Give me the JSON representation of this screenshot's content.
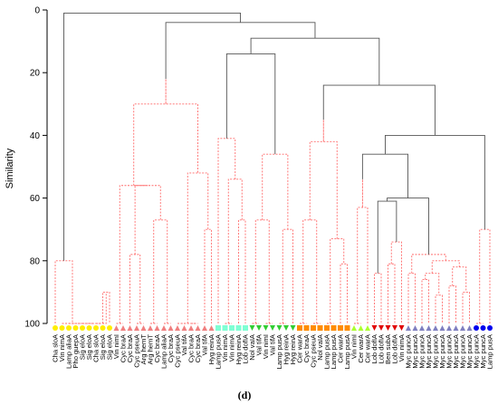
{
  "chart_data": {
    "type": "dendrogram",
    "ylabel": "Similarity",
    "ylim": [
      0,
      100
    ],
    "y_reversed": true,
    "yticks": [
      0,
      20,
      40,
      60,
      80,
      100
    ],
    "panel_label": "(d)",
    "colors": {
      "significant": "#555555",
      "nonsignificant": "#ff6b6b"
    },
    "leaves": [
      {
        "label": "Cha sloA",
        "marker": "circle",
        "color": "#ffee00"
      },
      {
        "label": "Vin nimA",
        "marker": "circle",
        "color": "#ffee00"
      },
      {
        "label": "Lamp aliaA",
        "marker": "circle",
        "color": "#ffee00"
      },
      {
        "label": "Pho guepA",
        "marker": "circle",
        "color": "#ffee00"
      },
      {
        "label": "Sig eloA",
        "marker": "circle",
        "color": "#ffee00"
      },
      {
        "label": "Sig eloA",
        "marker": "circle",
        "color": "#ffee00"
      },
      {
        "label": "Cha sloA",
        "marker": "circle",
        "color": "#ffee00"
      },
      {
        "label": "Sig eloA",
        "marker": "circle",
        "color": "#ffee00"
      },
      {
        "label": "Sig eloA",
        "marker": "circle",
        "color": "#ffee00"
      },
      {
        "label": "Vin nimI",
        "marker": "triangle-up",
        "color": "#f08080"
      },
      {
        "label": "Cyc braA",
        "marker": "triangle-up",
        "color": "#f08080"
      },
      {
        "label": "Cyc braA",
        "marker": "triangle-up",
        "color": "#f08080"
      },
      {
        "label": "Cyc pseuA",
        "marker": "triangle-up",
        "color": "#f08080"
      },
      {
        "label": "Arg hemT",
        "marker": "triangle-up",
        "color": "#f08080"
      },
      {
        "label": "Arg hemT",
        "marker": "triangle-up",
        "color": "#f08080"
      },
      {
        "label": "Cyc braA",
        "marker": "triangle-up",
        "color": "#f08080"
      },
      {
        "label": "Lamp aliaA",
        "marker": "triangle-up",
        "color": "#f08080"
      },
      {
        "label": "Cyc braA",
        "marker": "triangle-up",
        "color": "#f08080"
      },
      {
        "label": "Cyc pseuA",
        "marker": "triangle-up",
        "color": "#f08080"
      },
      {
        "label": "Val tifA",
        "marker": "triangle-up",
        "color": "#f08080"
      },
      {
        "label": "Cyc braA",
        "marker": "triangle-up",
        "color": "#f08080"
      },
      {
        "label": "Cyc braA",
        "marker": "triangle-up",
        "color": "#f08080"
      },
      {
        "label": "Val tifA",
        "marker": "triangle-up",
        "color": "#f08080"
      },
      {
        "label": "Hyg reinA",
        "marker": "triangle-up",
        "color": "#f08080"
      },
      {
        "label": "Lamp pusA",
        "marker": "square",
        "color": "#7fffd4"
      },
      {
        "label": "Vin nimA",
        "marker": "square",
        "color": "#7fffd4"
      },
      {
        "label": "Vin nimA",
        "marker": "square",
        "color": "#7fffd4"
      },
      {
        "label": "Hyg reinA",
        "marker": "square",
        "color": "#7fffd4"
      },
      {
        "label": "Lob dofIA",
        "marker": "square",
        "color": "#7fffd4"
      },
      {
        "label": "Nol vaIA",
        "marker": "triangle-down",
        "color": "#32cd32"
      },
      {
        "label": "Val tifA",
        "marker": "triangle-down",
        "color": "#32cd32"
      },
      {
        "label": "Vin nimI",
        "marker": "triangle-down",
        "color": "#32cd32"
      },
      {
        "label": "Val tifA",
        "marker": "triangle-down",
        "color": "#32cd32"
      },
      {
        "label": "Lamp pusA",
        "marker": "triangle-down",
        "color": "#32cd32"
      },
      {
        "label": "Hyg reinA",
        "marker": "triangle-down",
        "color": "#32cd32"
      },
      {
        "label": "Hyg reinA",
        "marker": "triangle-down",
        "color": "#32cd32"
      },
      {
        "label": "Cer warA",
        "marker": "square",
        "color": "#ff8c00"
      },
      {
        "label": "Cyc braA",
        "marker": "square",
        "color": "#ff8c00"
      },
      {
        "label": "Cyc pseuA",
        "marker": "square",
        "color": "#ff8c00"
      },
      {
        "label": "Nol vaIA",
        "marker": "square",
        "color": "#ff8c00"
      },
      {
        "label": "Lamp pusA",
        "marker": "square",
        "color": "#ff8c00"
      },
      {
        "label": "Lamp pusA",
        "marker": "square",
        "color": "#ff8c00"
      },
      {
        "label": "Cer warA",
        "marker": "square",
        "color": "#ff8c00"
      },
      {
        "label": "Lamp pusA",
        "marker": "square",
        "color": "#ff8c00"
      },
      {
        "label": "Vin nimI",
        "marker": "triangle-up",
        "color": "#adff2f"
      },
      {
        "label": "Cer warA",
        "marker": "triangle-up",
        "color": "#adff2f"
      },
      {
        "label": "Cer warA",
        "marker": "triangle-up",
        "color": "#adff2f"
      },
      {
        "label": "Lob dofIA",
        "marker": "triangle-down",
        "color": "#e00000"
      },
      {
        "label": "Lob dofIA",
        "marker": "triangle-down",
        "color": "#e00000"
      },
      {
        "label": "Ben subA",
        "marker": "triangle-down",
        "color": "#e00000"
      },
      {
        "label": "Lob dofIA",
        "marker": "triangle-down",
        "color": "#e00000"
      },
      {
        "label": "Vin nimA",
        "marker": "triangle-down",
        "color": "#e00000"
      },
      {
        "label": "Myc puncA",
        "marker": "triangle-up",
        "color": "#8080c0"
      },
      {
        "label": "Myc puncA",
        "marker": "triangle-up",
        "color": "#8080c0"
      },
      {
        "label": "Myc puncA",
        "marker": "triangle-up",
        "color": "#8080c0"
      },
      {
        "label": "Myc puncA",
        "marker": "triangle-up",
        "color": "#8080c0"
      },
      {
        "label": "Myc puncA",
        "marker": "triangle-up",
        "color": "#8080c0"
      },
      {
        "label": "Myc puncA",
        "marker": "triangle-up",
        "color": "#8080c0"
      },
      {
        "label": "Myc puncA",
        "marker": "triangle-up",
        "color": "#8080c0"
      },
      {
        "label": "Myc puncA",
        "marker": "triangle-up",
        "color": "#8080c0"
      },
      {
        "label": "Myc puncA",
        "marker": "triangle-up",
        "color": "#8080c0"
      },
      {
        "label": "Myc puncA",
        "marker": "triangle-up",
        "color": "#8080c0"
      },
      {
        "label": "Myc puncA",
        "marker": "circle",
        "color": "#0000ee"
      },
      {
        "label": "Myc puncA",
        "marker": "circle",
        "color": "#0000ee"
      },
      {
        "label": "Lamp pusA",
        "marker": "circle",
        "color": "#0000ee"
      }
    ],
    "merges": [
      {
        "a": 2,
        "b": 3,
        "h": 100,
        "sig": false
      },
      {
        "a": 4,
        "b": 5,
        "h": 100,
        "sig": false
      },
      {
        "a": 7,
        "b": 8,
        "h": 90,
        "sig": false
      },
      {
        "a": 6,
        "b": "m2",
        "h": 100,
        "sig": false
      },
      {
        "a": "m1",
        "b": "m3",
        "h": 100,
        "sig": false
      },
      {
        "a": "m0",
        "b": "m4",
        "h": 100,
        "sig": false
      },
      {
        "a": 1,
        "b": "m5",
        "h": 100,
        "sig": false
      },
      {
        "a": 0,
        "b": "m6",
        "h": 80,
        "sig": false
      },
      {
        "a": 9,
        "b": 10,
        "h": 100,
        "sig": false
      },
      {
        "a": 12,
        "b": 13,
        "h": 100,
        "sig": false
      },
      {
        "a": 11,
        "b": "m9",
        "h": 78,
        "sig": false
      },
      {
        "a": 14,
        "b": 15,
        "h": 100,
        "sig": false
      },
      {
        "a": 16,
        "b": 17,
        "h": 100,
        "sig": false
      },
      {
        "a": "m11",
        "b": "m12",
        "h": 67,
        "sig": false
      },
      {
        "a": "m10",
        "b": "m13",
        "h": 56,
        "sig": false
      },
      {
        "a": "m8",
        "b": "m14",
        "h": 56,
        "sig": false
      },
      {
        "a": 18,
        "b": 19,
        "h": 100,
        "sig": false
      },
      {
        "a": 20,
        "b": 21,
        "h": 100,
        "sig": false
      },
      {
        "a": "m16",
        "b": "m17",
        "h": 100,
        "sig": false
      },
      {
        "a": 22,
        "b": 23,
        "h": 70,
        "sig": false
      },
      {
        "a": "m18",
        "b": "m19",
        "h": 52,
        "sig": false
      },
      {
        "a": "m15",
        "b": "m20",
        "h": 30,
        "sig": false
      },
      {
        "a": "m21",
        "b": "m20b",
        "h": 22,
        "sig": false
      },
      {
        "a": 25,
        "b": 26,
        "h": 100,
        "sig": false
      },
      {
        "a": 27,
        "b": 28,
        "h": 67,
        "sig": false
      },
      {
        "a": "m23",
        "b": "m24",
        "h": 54,
        "sig": false
      },
      {
        "a": 24,
        "b": "m25",
        "h": 41,
        "sig": false
      },
      {
        "a": 29,
        "b": 30,
        "h": 100,
        "sig": false
      },
      {
        "a": 31,
        "b": 32,
        "h": 100,
        "sig": false
      },
      {
        "a": "m27",
        "b": "m28",
        "h": 67,
        "sig": false
      },
      {
        "a": 33,
        "b": 34,
        "h": 100,
        "sig": false
      },
      {
        "a": 35,
        "b": "m30",
        "h": 70,
        "sig": false
      },
      {
        "a": "m29",
        "b": "m31",
        "h": 46,
        "sig": false
      },
      {
        "a": "m26",
        "b": "m32",
        "h": 14,
        "sig": true
      },
      {
        "a": 36,
        "b": 37,
        "h": 100,
        "sig": false
      },
      {
        "a": 38,
        "b": 39,
        "h": 100,
        "sig": false
      },
      {
        "a": "m34",
        "b": "m35",
        "h": 67,
        "sig": false
      },
      {
        "a": 40,
        "b": 41,
        "h": 100,
        "sig": false
      },
      {
        "a": 42,
        "b": 43,
        "h": 81,
        "sig": false
      },
      {
        "a": "m37",
        "b": "m38",
        "h": 73,
        "sig": false
      },
      {
        "a": "m39",
        "b": "m39b",
        "h": 53,
        "sig": false
      },
      {
        "a": "m36",
        "b": "m40",
        "h": 42,
        "sig": false
      },
      {
        "a": "m41",
        "b": "m41b",
        "h": 35,
        "sig": false
      },
      {
        "a": 44,
        "b": 45,
        "h": 100,
        "sig": false
      },
      {
        "a": 46,
        "b": "m43",
        "h": 63,
        "sig": false
      },
      {
        "a": "m44",
        "b": "m44b",
        "h": 54,
        "sig": false
      },
      {
        "a": 47,
        "b": 48,
        "h": 84,
        "sig": false
      },
      {
        "a": 49,
        "b": 50,
        "h": 81,
        "sig": false
      },
      {
        "a": "m47",
        "b": 51,
        "h": 74,
        "sig": false
      },
      {
        "a": "m46",
        "b": "m48",
        "h": 61,
        "sig": true
      },
      {
        "a": 52,
        "b": 53,
        "h": 84,
        "sig": false
      },
      {
        "a": 54,
        "b": 55,
        "h": 86,
        "sig": false
      },
      {
        "a": 56,
        "b": 57,
        "h": 91,
        "sig": false
      },
      {
        "a": "m51",
        "b": "m52",
        "h": 84,
        "sig": false
      },
      {
        "a": 58,
        "b": 59,
        "h": 88,
        "sig": false
      },
      {
        "a": 60,
        "b": 61,
        "h": 90,
        "sig": false
      },
      {
        "a": "m54",
        "b": "m55",
        "h": 82,
        "sig": false
      },
      {
        "a": "m53",
        "b": "m56",
        "h": 80,
        "sig": false
      },
      {
        "a": "m50",
        "b": "m57",
        "h": 78,
        "sig": false
      },
      {
        "a": "m58",
        "b": "m58b",
        "h": 63,
        "sig": true
      },
      {
        "a": "m49",
        "b": "m59",
        "h": 60,
        "sig": true
      },
      {
        "a": "m45",
        "b": "m60",
        "h": 46,
        "sig": true
      },
      {
        "a": 62,
        "b": 63,
        "h": 100,
        "sig": false
      },
      {
        "a": 64,
        "b": "m62",
        "h": 70,
        "sig": false
      },
      {
        "a": "m61",
        "b": "m63",
        "h": 40,
        "sig": true
      },
      {
        "a": "m42",
        "b": "m64",
        "h": 24,
        "sig": true
      },
      {
        "a": "m33",
        "b": "m65",
        "h": 9,
        "sig": true
      },
      {
        "a": "m22",
        "b": "m66",
        "h": 4,
        "sig": true
      },
      {
        "a": "m7",
        "b": "m67",
        "h": 1,
        "sig": true
      }
    ]
  }
}
